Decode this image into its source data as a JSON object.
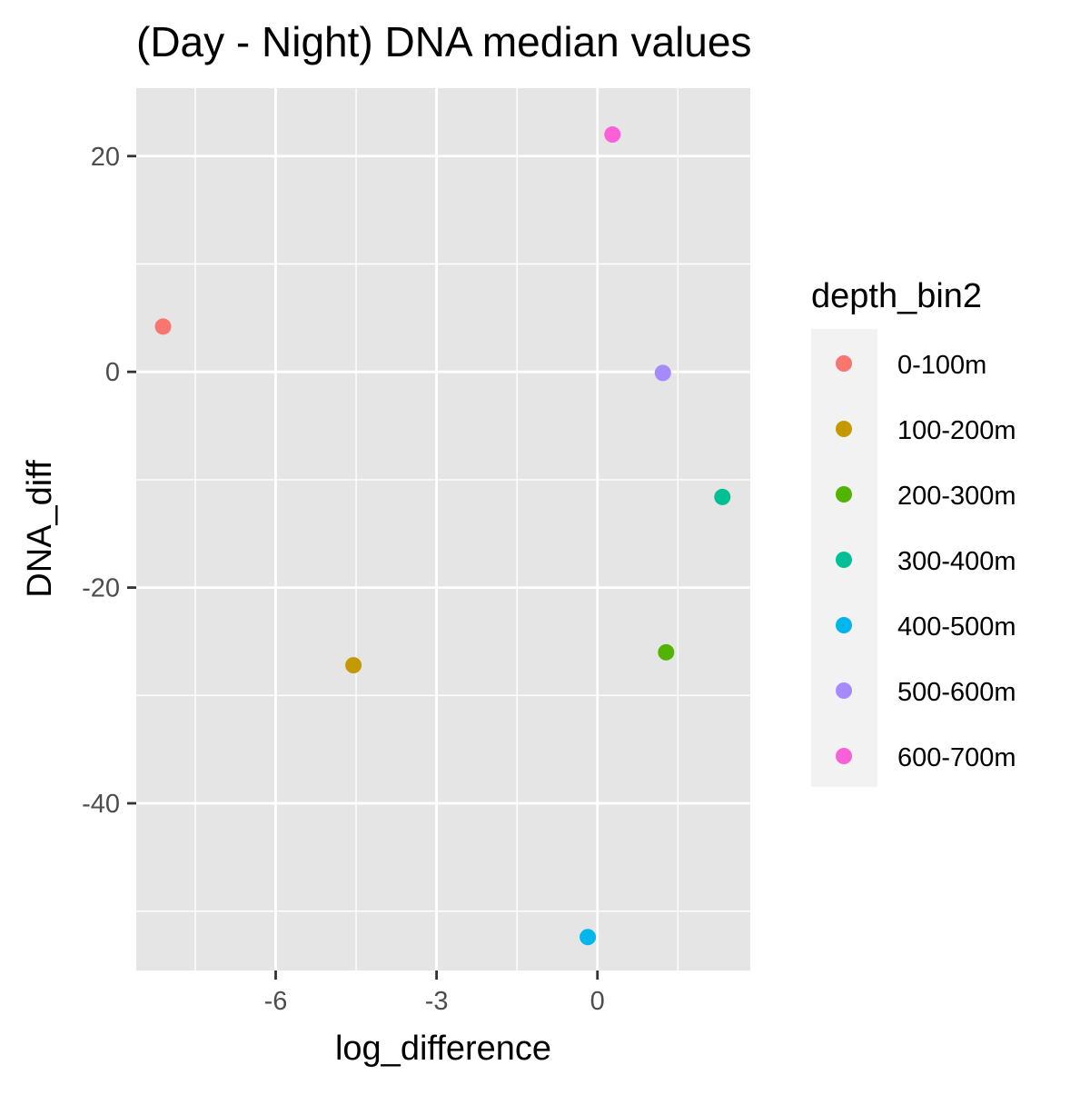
{
  "chart_data": {
    "type": "scatter",
    "title": "(Day - Night) DNA median values",
    "xlabel": "log_difference",
    "ylabel": "DNA_diff",
    "xlim": [
      -8.6,
      2.85
    ],
    "ylim": [
      -55.5,
      26.3
    ],
    "x_ticks": [
      -6,
      -3,
      0
    ],
    "x_tick_labels": [
      "-6",
      "-3",
      "0"
    ],
    "y_ticks": [
      20,
      0,
      -20,
      -40
    ],
    "y_tick_labels": [
      "20",
      "0",
      "-20",
      "-40"
    ],
    "x_minor_ticks": [
      -7.5,
      -4.5,
      -1.5,
      1.5
    ],
    "y_minor_ticks": [
      10,
      -10,
      -30,
      -50
    ],
    "grid": true,
    "legend": {
      "title": "depth_bin2",
      "position": "right"
    },
    "series": [
      {
        "name": "0-100m",
        "color": "#F8766D",
        "x": [
          -8.1
        ],
        "y": [
          4.2
        ]
      },
      {
        "name": "100-200m",
        "color": "#C49A00",
        "x": [
          -4.55
        ],
        "y": [
          -27.2
        ]
      },
      {
        "name": "200-300m",
        "color": "#53B400",
        "x": [
          1.28
        ],
        "y": [
          -26.0
        ]
      },
      {
        "name": "300-400m",
        "color": "#00C094",
        "x": [
          2.33
        ],
        "y": [
          -11.6
        ]
      },
      {
        "name": "400-500m",
        "color": "#00B6EB",
        "x": [
          -0.18
        ],
        "y": [
          -52.4
        ]
      },
      {
        "name": "500-600m",
        "color": "#A58AFF",
        "x": [
          1.22
        ],
        "y": [
          -0.1
        ]
      },
      {
        "name": "600-700m",
        "color": "#FB61D7",
        "x": [
          0.28
        ],
        "y": [
          22.0
        ]
      }
    ]
  }
}
